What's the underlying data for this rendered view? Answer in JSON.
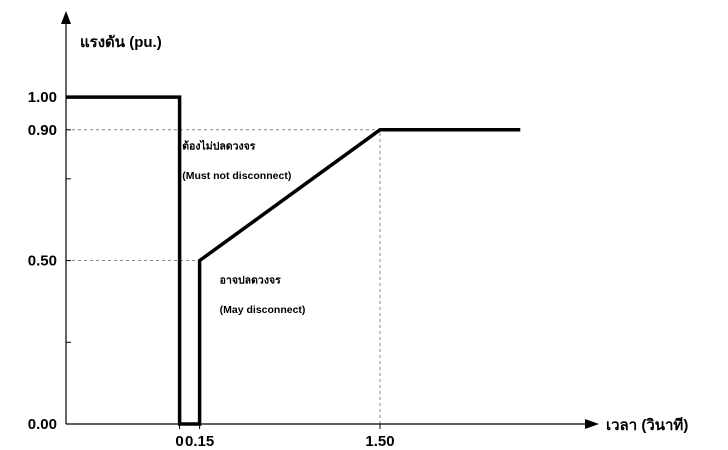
{
  "chart_data": {
    "type": "line",
    "title": "",
    "ylabel": "แรงดัน   (pu.)",
    "xlabel": "เวลา   (วินาที)",
    "xlim": [
      -0.85,
      3.82
    ],
    "ylim": [
      0,
      1.19
    ],
    "x_ticks": [
      {
        "value": 0,
        "label": "0"
      },
      {
        "value": 0.15,
        "label": "0.15"
      },
      {
        "value": 1.5,
        "label": "1.50"
      }
    ],
    "y_ticks": [
      {
        "value": 0.0,
        "label": "0.00"
      },
      {
        "value": 0.5,
        "label": "0.50"
      },
      {
        "value": 0.9,
        "label": "0.90"
      },
      {
        "value": 1.0,
        "label": "1.00"
      }
    ],
    "series": [
      {
        "color": "#000000",
        "points": [
          [
            -0.85,
            1.0
          ],
          [
            0,
            1.0
          ],
          [
            0,
            0
          ],
          [
            0.15,
            0
          ],
          [
            0.15,
            0.5
          ],
          [
            1.5,
            0.9
          ],
          [
            2.55,
            0.9
          ]
        ]
      }
    ],
    "reference_lines": [
      {
        "axis": "y",
        "value": 0.9,
        "from": -0.85,
        "to": 1.5,
        "style": "dashed",
        "color": "#888888"
      },
      {
        "axis": "y",
        "value": 0.5,
        "from": -0.85,
        "to": 0.15,
        "style": "dashed",
        "color": "#888888"
      },
      {
        "axis": "x",
        "value": 1.5,
        "from": 0,
        "to": 0.9,
        "style": "dashed",
        "color": "#888888"
      }
    ],
    "annotations": [
      {
        "text": "ต้องไม่ปลดวงจร",
        "x": 0.02,
        "y": 0.84
      },
      {
        "text": "(Must not disconnect)",
        "x": 0.02,
        "y": 0.75
      },
      {
        "text": "อาจปลดวงจร",
        "x": 0.3,
        "y": 0.43
      },
      {
        "text": "(May disconnect)",
        "x": 0.3,
        "y": 0.34
      }
    ],
    "grid": false,
    "legend": "none"
  }
}
